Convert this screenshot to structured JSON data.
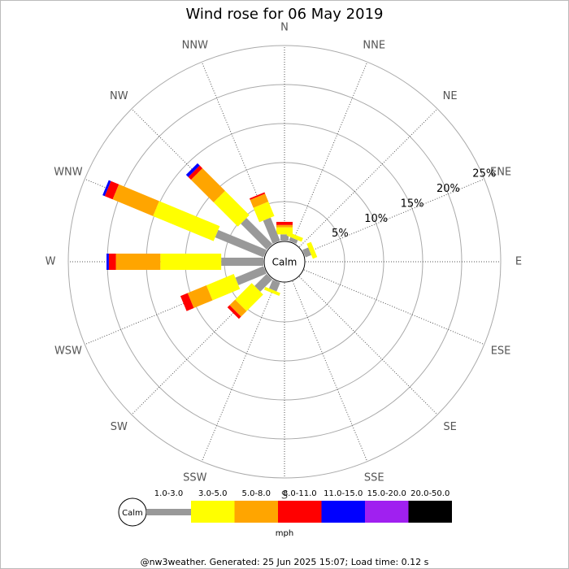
{
  "chart_data": {
    "type": "windrose",
    "title": "Wind rose for 06 May 2019",
    "directions": [
      "N",
      "NNE",
      "NE",
      "ENE",
      "E",
      "ESE",
      "SE",
      "SSE",
      "S",
      "SSW",
      "SW",
      "WSW",
      "W",
      "WNW",
      "NW",
      "NNW"
    ],
    "calm_label": "Calm",
    "rlim": [
      0,
      25
    ],
    "rticks": [
      {
        "value": 5,
        "label": "5%"
      },
      {
        "value": 10,
        "label": "10%"
      },
      {
        "value": 15,
        "label": "15%"
      },
      {
        "value": 20,
        "label": "20%"
      },
      {
        "value": 25,
        "label": "25%"
      }
    ],
    "legend_title": "mph",
    "series": [
      {
        "name": "1.0-3.0",
        "color": "#999999",
        "values": [
          0.8,
          0.5,
          0,
          0.8,
          0,
          0,
          0,
          0,
          0,
          1.2,
          2.2,
          3.9,
          5.4,
          6.7,
          4.7,
          3.2
        ]
      },
      {
        "name": "3.0-5.0",
        "color": "#ffff00",
        "values": [
          0.9,
          0.5,
          0,
          0.6,
          0,
          0,
          0,
          0,
          0,
          0.4,
          3.0,
          3.8,
          7.8,
          8.4,
          4.4,
          2.0
        ]
      },
      {
        "name": "5.0-8.0",
        "color": "#ffa500",
        "values": [
          0.3,
          0,
          0,
          0,
          0,
          0,
          0,
          0,
          0,
          0,
          1.0,
          2.6,
          5.7,
          5.6,
          4.1,
          1.1
        ]
      },
      {
        "name": "8.0-11.0",
        "color": "#ff0000",
        "values": [
          0.4,
          0,
          0,
          0,
          0,
          0,
          0,
          0,
          0,
          0,
          0.4,
          1.0,
          0.9,
          1.1,
          0.5,
          0.2
        ]
      },
      {
        "name": "11.0-15.0",
        "color": "#0000ff",
        "values": [
          0,
          0,
          0,
          0,
          0,
          0,
          0,
          0,
          0,
          0,
          0,
          0,
          0.3,
          0.3,
          0.4,
          0
        ]
      },
      {
        "name": "15.0-20.0",
        "color": "#a020f0",
        "values": [
          0,
          0,
          0,
          0,
          0,
          0,
          0,
          0,
          0,
          0,
          0,
          0,
          0,
          0,
          0,
          0
        ]
      },
      {
        "name": "20.0-50.0",
        "color": "#000000",
        "values": [
          0,
          0,
          0,
          0,
          0,
          0,
          0,
          0,
          0,
          0,
          0,
          0,
          0,
          0,
          0,
          0
        ]
      }
    ],
    "footer": "@nw3weather. Generated: 25 Jun 2025 15:07; Load time: 0.12 s"
  }
}
